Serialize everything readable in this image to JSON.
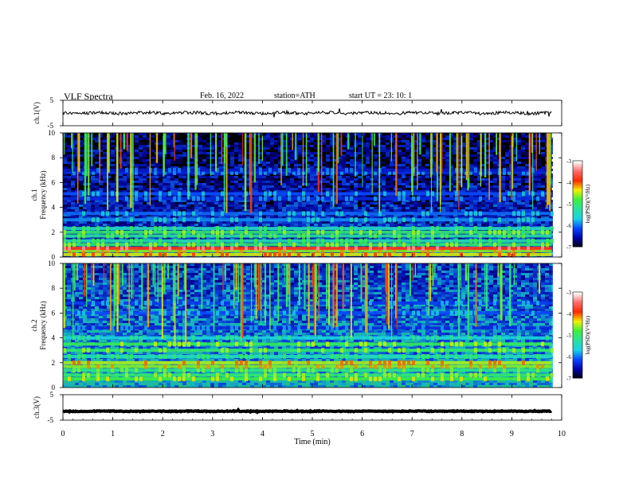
{
  "header": {
    "title": "VLF  Spectra",
    "date": "Feb. 16, 2022",
    "station": "station=ATH",
    "start_ut": "start  UT  =    23: 10: 1"
  },
  "colors": {
    "spectrogram_bg": "#000000",
    "trace": "#000000",
    "colorbar_stops": [
      "#000000",
      "#0000aa",
      "#0a46ff",
      "#19d2e6",
      "#28e1a0",
      "#3cf03c",
      "#f0f000",
      "#ff2800",
      "#ff6e6e",
      "#ffffff"
    ]
  },
  "chart_data": [
    {
      "type": "line",
      "panel": "ch1-waveform",
      "ylabel": "ch.1(V)",
      "ylim": [
        -5,
        5
      ],
      "yticks": [
        "5",
        "-5"
      ],
      "x_range_min": [
        0,
        9.8
      ],
      "baseline_v": 0,
      "amplitude_v": 0.6
    },
    {
      "type": "heatmap",
      "panel": "ch1-spectrogram",
      "ylabel": [
        "ch.1",
        "Frequency  (kHz)"
      ],
      "ylim": [
        0,
        10
      ],
      "yticks": [
        "0",
        "2",
        "4",
        "6",
        "8",
        "10"
      ],
      "x_range_min": [
        0,
        9.8
      ],
      "colorbar": {
        "label": "log(PSD)(V²/Hz)",
        "range": [
          -7,
          -3
        ],
        "ticks": [
          "-3",
          "-4",
          "-5",
          "-6",
          "-7"
        ]
      },
      "bands_khz": [
        {
          "f": 0.2,
          "level": -4.4
        },
        {
          "f": 0.5,
          "level": -4.6
        },
        {
          "f": 0.7,
          "level": -3.8
        },
        {
          "f": 1.0,
          "level": -5.0
        },
        {
          "f": 1.3,
          "level": -5.3
        },
        {
          "f": 1.7,
          "level": -5.2
        },
        {
          "f": 2.0,
          "level": -5.0
        },
        {
          "f": 2.3,
          "level": -5.4
        },
        {
          "f": 3.0,
          "level": -5.9
        },
        {
          "f": 3.5,
          "level": -6.0
        },
        {
          "f": 4.7,
          "level": -6.3
        },
        {
          "f": 5.1,
          "level": -6.1
        },
        {
          "f": 6.8,
          "level": -6.3
        },
        {
          "f": 7.0,
          "level": -6.4
        }
      ],
      "background_level": -6.8,
      "sferic_count": 110
    },
    {
      "type": "heatmap",
      "panel": "ch2-spectrogram",
      "ylabel": [
        "ch.2",
        "Frequency  (kHz)"
      ],
      "ylim": [
        0,
        10
      ],
      "yticks": [
        "0",
        "2",
        "4",
        "6",
        "8",
        "10"
      ],
      "x_range_min": [
        0,
        9.8
      ],
      "colorbar": {
        "label": "log(PSD)(V²/Hz)",
        "range": [
          -7,
          -3
        ],
        "ticks": [
          "-3",
          "-4",
          "-5",
          "-6",
          "-7"
        ]
      },
      "bands_khz": [
        {
          "f": 0.7,
          "level": -4.8
        },
        {
          "f": 1.0,
          "level": -5.0
        },
        {
          "f": 1.4,
          "level": -5.1
        },
        {
          "f": 1.7,
          "level": -4.6
        },
        {
          "f": 2.0,
          "level": -4.5
        },
        {
          "f": 2.5,
          "level": -5.4
        },
        {
          "f": 3.0,
          "level": -5.0
        },
        {
          "f": 3.5,
          "level": -4.9
        },
        {
          "f": 4.0,
          "level": -5.6
        },
        {
          "f": 4.8,
          "level": -6.3
        },
        {
          "f": 6.0,
          "level": -6.1
        },
        {
          "f": 6.8,
          "level": -6.2
        }
      ],
      "background_level": -6.3,
      "sferic_count": 110
    },
    {
      "type": "line",
      "panel": "ch3-waveform",
      "ylabel": "ch.3(V)",
      "ylim": [
        -5,
        5
      ],
      "yticks": [
        "5",
        "-5"
      ],
      "x_range_min": [
        0,
        9.8
      ],
      "baseline_v": -1.5,
      "amplitude_v": 0.15
    }
  ],
  "x_axis": {
    "label": "Time  (min)",
    "range": [
      0,
      10
    ],
    "ticks": [
      "0",
      "1",
      "2",
      "3",
      "4",
      "5",
      "6",
      "7",
      "8",
      "9",
      "10"
    ]
  }
}
